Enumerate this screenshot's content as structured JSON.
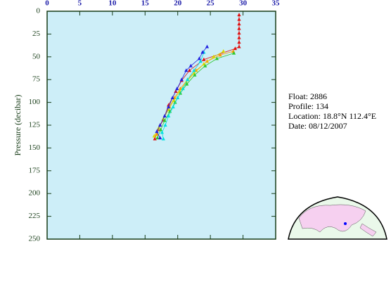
{
  "chart_data": {
    "type": "line",
    "y_label": "Pressure (decibar)",
    "xlim": [
      0,
      35
    ],
    "xticks": [
      0,
      5,
      10,
      15,
      20,
      25,
      30,
      35
    ],
    "ylim": [
      250,
      0
    ],
    "yticks": [
      0,
      25,
      50,
      75,
      100,
      125,
      150,
      175,
      200,
      225,
      250
    ],
    "series": [
      {
        "color": "#e01010",
        "x": [
          29.4,
          29.4,
          29.4,
          29.4,
          29.4,
          29.4,
          29.4,
          29.4,
          28.8,
          24.0,
          21.8,
          20.6,
          19.7,
          18.6,
          17.8,
          17.0,
          16.5
        ],
        "y": [
          4,
          9,
          14,
          19,
          24,
          29,
          34,
          39,
          41,
          53,
          65,
          76,
          88,
          103,
          119,
          130,
          140
        ]
      },
      {
        "color": "#ff9a00",
        "x": [
          28.5,
          26.5,
          24.5,
          22.8,
          21.5,
          20.4,
          19.5,
          18.7,
          18.0,
          17.3,
          16.8
        ],
        "y": [
          44,
          48,
          55,
          65,
          75,
          85,
          95,
          105,
          115,
          125,
          135
        ]
      },
      {
        "color": "#d8d800",
        "x": [
          27.0,
          25.5,
          24.0,
          22.5,
          21.3,
          20.3,
          19.4,
          18.6,
          17.8,
          17.1,
          16.4
        ],
        "y": [
          44,
          50,
          58,
          68,
          78,
          88,
          98,
          108,
          118,
          128,
          137
        ]
      },
      {
        "color": "#2ec82e",
        "x": [
          28.6,
          26.0,
          24.2,
          22.6,
          21.4,
          20.4,
          19.6,
          18.8,
          18.0,
          17.4,
          16.9
        ],
        "y": [
          46,
          52,
          60,
          70,
          80,
          90,
          100,
          110,
          120,
          130,
          139
        ]
      },
      {
        "color": "#00e0e0",
        "x": [
          24.0,
          23.5,
          22.5,
          21.5,
          20.8,
          20.0,
          19.3,
          18.6,
          18.1,
          17.6,
          17.8
        ],
        "y": [
          45,
          55,
          65,
          75,
          85,
          95,
          105,
          115,
          125,
          133,
          140
        ]
      },
      {
        "color": "#2020e0",
        "x": [
          24.5,
          23.8,
          23.3,
          22.0,
          21.3,
          20.6,
          19.9,
          19.2,
          18.6,
          18.0,
          17.3,
          16.8,
          17.3
        ],
        "y": [
          39,
          45,
          52,
          60,
          65,
          75,
          85,
          95,
          105,
          115,
          125,
          132,
          139
        ]
      }
    ]
  },
  "info": {
    "float": "Float:  2886",
    "profile": "Profile:  134",
    "location": "Location:  18.8°N  112.4°E",
    "date": "Date:  08/12/2007"
  }
}
